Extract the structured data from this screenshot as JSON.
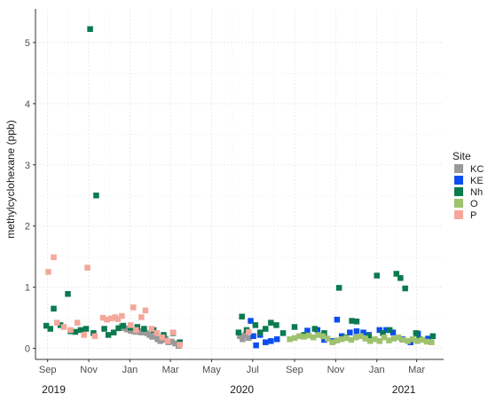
{
  "chart_data": {
    "type": "scatter",
    "title": "",
    "xlabel": "",
    "ylabel": "methylcyclohexane (ppb)",
    "x_is_date": true,
    "xlim": [
      "2019-08-14",
      "2021-04-10"
    ],
    "ylim": [
      -0.18,
      5.55
    ],
    "yticks": [
      0,
      1,
      2,
      3,
      4,
      5
    ],
    "xticks": [
      {
        "label": "Sep",
        "date": "2019-09-01"
      },
      {
        "label": "Nov",
        "date": "2019-11-01"
      },
      {
        "label": "Jan",
        "date": "2020-01-01"
      },
      {
        "label": "Mar",
        "date": "2020-03-01"
      },
      {
        "label": "May",
        "date": "2020-05-01"
      },
      {
        "label": "Jul",
        "date": "2020-07-01"
      },
      {
        "label": "Sep",
        "date": "2020-09-01"
      },
      {
        "label": "Nov",
        "date": "2020-11-01"
      },
      {
        "label": "Jan",
        "date": "2021-01-01"
      },
      {
        "label": "Mar",
        "date": "2021-03-01"
      }
    ],
    "year_labels": [
      {
        "label": "2019",
        "date": "2019-09-10"
      },
      {
        "label": "2020",
        "date": "2020-06-15"
      },
      {
        "label": "2021",
        "date": "2021-02-10"
      }
    ],
    "grid": true,
    "legend_title": "Site",
    "legend_position": "right",
    "series": [
      {
        "name": "KC",
        "color": "#999999",
        "points": [
          [
            "2019-12-20",
            0.36
          ],
          [
            "2019-12-24",
            0.33
          ],
          [
            "2019-12-28",
            0.31
          ],
          [
            "2020-01-02",
            0.29
          ],
          [
            "2020-01-06",
            0.28
          ],
          [
            "2020-01-10",
            0.27
          ],
          [
            "2020-01-14",
            0.28
          ],
          [
            "2020-01-18",
            0.26
          ],
          [
            "2020-01-22",
            0.27
          ],
          [
            "2020-01-26",
            0.25
          ],
          [
            "2020-01-30",
            0.22
          ],
          [
            "2020-02-03",
            0.19
          ],
          [
            "2020-02-07",
            0.2
          ],
          [
            "2020-02-11",
            0.15
          ],
          [
            "2020-02-15",
            0.12
          ],
          [
            "2020-02-19",
            0.14
          ],
          [
            "2020-02-23",
            0.16
          ],
          [
            "2020-02-27",
            0.1
          ],
          [
            "2020-03-03",
            0.11
          ],
          [
            "2020-03-08",
            0.08
          ],
          [
            "2020-03-13",
            0.04
          ],
          [
            "2020-06-12",
            0.2
          ],
          [
            "2020-06-16",
            0.15
          ],
          [
            "2020-06-20",
            0.22
          ],
          [
            "2020-06-25",
            0.17
          ]
        ]
      },
      {
        "name": "KE",
        "color": "#0b4ef0",
        "points": [
          [
            "2020-06-28",
            0.45
          ],
          [
            "2020-07-02",
            0.2
          ],
          [
            "2020-07-06",
            0.05
          ],
          [
            "2020-07-12",
            0.22
          ],
          [
            "2020-07-20",
            0.1
          ],
          [
            "2020-07-28",
            0.12
          ],
          [
            "2020-08-06",
            0.15
          ],
          [
            "2020-09-10",
            0.2
          ],
          [
            "2020-09-20",
            0.29
          ],
          [
            "2020-10-05",
            0.3
          ],
          [
            "2020-10-15",
            0.14
          ],
          [
            "2020-10-28",
            0.12
          ],
          [
            "2020-11-03",
            0.47
          ],
          [
            "2020-11-10",
            0.2
          ],
          [
            "2020-11-22",
            0.26
          ],
          [
            "2020-12-02",
            0.28
          ],
          [
            "2020-12-12",
            0.26
          ],
          [
            "2020-12-20",
            0.22
          ],
          [
            "2021-01-05",
            0.3
          ],
          [
            "2021-01-15",
            0.3
          ],
          [
            "2021-01-25",
            0.26
          ],
          [
            "2021-02-08",
            0.15
          ],
          [
            "2021-02-20",
            0.1
          ],
          [
            "2021-03-03",
            0.24
          ],
          [
            "2021-03-18",
            0.16
          ]
        ]
      },
      {
        "name": "Nh",
        "color": "#0a7a4f",
        "points": [
          [
            "2019-08-30",
            0.37
          ],
          [
            "2019-09-05",
            0.32
          ],
          [
            "2019-09-10",
            0.65
          ],
          [
            "2019-09-20",
            0.38
          ],
          [
            "2019-10-01",
            0.89
          ],
          [
            "2019-10-05",
            0.28
          ],
          [
            "2019-10-12",
            0.27
          ],
          [
            "2019-10-20",
            0.3
          ],
          [
            "2019-10-28",
            0.32
          ],
          [
            "2019-11-03",
            5.22
          ],
          [
            "2019-11-08",
            0.25
          ],
          [
            "2019-11-12",
            2.5
          ],
          [
            "2019-11-24",
            0.32
          ],
          [
            "2019-11-30",
            0.22
          ],
          [
            "2019-12-08",
            0.26
          ],
          [
            "2019-12-15",
            0.33
          ],
          [
            "2019-12-22",
            0.37
          ],
          [
            "2020-01-02",
            0.34
          ],
          [
            "2020-01-12",
            0.35
          ],
          [
            "2020-01-22",
            0.32
          ],
          [
            "2020-02-05",
            0.3
          ],
          [
            "2020-02-20",
            0.22
          ],
          [
            "2020-03-05",
            0.25
          ],
          [
            "2020-03-15",
            0.1
          ],
          [
            "2020-06-10",
            0.26
          ],
          [
            "2020-06-15",
            0.52
          ],
          [
            "2020-06-22",
            0.3
          ],
          [
            "2020-07-05",
            0.38
          ],
          [
            "2020-07-12",
            0.26
          ],
          [
            "2020-07-20",
            0.32
          ],
          [
            "2020-07-28",
            0.42
          ],
          [
            "2020-08-05",
            0.38
          ],
          [
            "2020-08-15",
            0.25
          ],
          [
            "2020-09-01",
            0.35
          ],
          [
            "2020-09-15",
            0.22
          ],
          [
            "2020-10-01",
            0.32
          ],
          [
            "2020-10-15",
            0.25
          ],
          [
            "2020-11-06",
            0.99
          ],
          [
            "2020-11-15",
            0.18
          ],
          [
            "2020-11-25",
            0.45
          ],
          [
            "2020-12-02",
            0.44
          ],
          [
            "2020-12-20",
            0.2
          ],
          [
            "2021-01-01",
            1.19
          ],
          [
            "2021-01-10",
            0.25
          ],
          [
            "2021-01-20",
            0.3
          ],
          [
            "2021-01-30",
            1.22
          ],
          [
            "2021-02-05",
            1.15
          ],
          [
            "2021-02-12",
            0.98
          ],
          [
            "2021-02-28",
            0.25
          ],
          [
            "2021-03-05",
            0.15
          ],
          [
            "2021-03-25",
            0.2
          ]
        ]
      },
      {
        "name": "O",
        "color": "#9fc26e",
        "points": [
          [
            "2020-08-25",
            0.15
          ],
          [
            "2020-09-01",
            0.17
          ],
          [
            "2020-09-08",
            0.2
          ],
          [
            "2020-09-15",
            0.19
          ],
          [
            "2020-09-22",
            0.21
          ],
          [
            "2020-09-29",
            0.18
          ],
          [
            "2020-10-06",
            0.22
          ],
          [
            "2020-10-13",
            0.2
          ],
          [
            "2020-10-20",
            0.16
          ],
          [
            "2020-10-27",
            0.1
          ],
          [
            "2020-11-03",
            0.13
          ],
          [
            "2020-11-10",
            0.15
          ],
          [
            "2020-11-17",
            0.17
          ],
          [
            "2020-11-24",
            0.14
          ],
          [
            "2020-12-01",
            0.18
          ],
          [
            "2020-12-08",
            0.2
          ],
          [
            "2020-12-15",
            0.16
          ],
          [
            "2020-12-22",
            0.12
          ],
          [
            "2020-12-29",
            0.15
          ],
          [
            "2021-01-05",
            0.12
          ],
          [
            "2021-01-12",
            0.18
          ],
          [
            "2021-01-19",
            0.13
          ],
          [
            "2021-01-26",
            0.16
          ],
          [
            "2021-02-02",
            0.18
          ],
          [
            "2021-02-09",
            0.14
          ],
          [
            "2021-02-16",
            0.12
          ],
          [
            "2021-02-23",
            0.15
          ],
          [
            "2021-03-02",
            0.12
          ],
          [
            "2021-03-09",
            0.14
          ],
          [
            "2021-03-16",
            0.11
          ],
          [
            "2021-03-23",
            0.1
          ]
        ]
      },
      {
        "name": "P",
        "color": "#f4a79a",
        "points": [
          [
            "2019-09-02",
            1.25
          ],
          [
            "2019-09-10",
            1.49
          ],
          [
            "2019-09-15",
            0.42
          ],
          [
            "2019-09-25",
            0.35
          ],
          [
            "2019-10-05",
            0.3
          ],
          [
            "2019-10-15",
            0.42
          ],
          [
            "2019-10-25",
            0.22
          ],
          [
            "2019-10-30",
            1.32
          ],
          [
            "2019-11-10",
            0.2
          ],
          [
            "2019-11-22",
            0.5
          ],
          [
            "2019-11-28",
            0.47
          ],
          [
            "2019-12-04",
            0.49
          ],
          [
            "2019-12-10",
            0.51
          ],
          [
            "2019-12-14",
            0.48
          ],
          [
            "2019-12-20",
            0.53
          ],
          [
            "2020-01-02",
            0.38
          ],
          [
            "2020-01-06",
            0.67
          ],
          [
            "2020-01-10",
            0.3
          ],
          [
            "2020-01-18",
            0.51
          ],
          [
            "2020-01-24",
            0.62
          ],
          [
            "2020-02-02",
            0.32
          ],
          [
            "2020-02-10",
            0.25
          ],
          [
            "2020-02-18",
            0.18
          ],
          [
            "2020-02-26",
            0.12
          ],
          [
            "2020-03-05",
            0.26
          ],
          [
            "2020-03-15",
            0.06
          ],
          [
            "2020-06-25",
            0.27
          ]
        ]
      }
    ]
  }
}
